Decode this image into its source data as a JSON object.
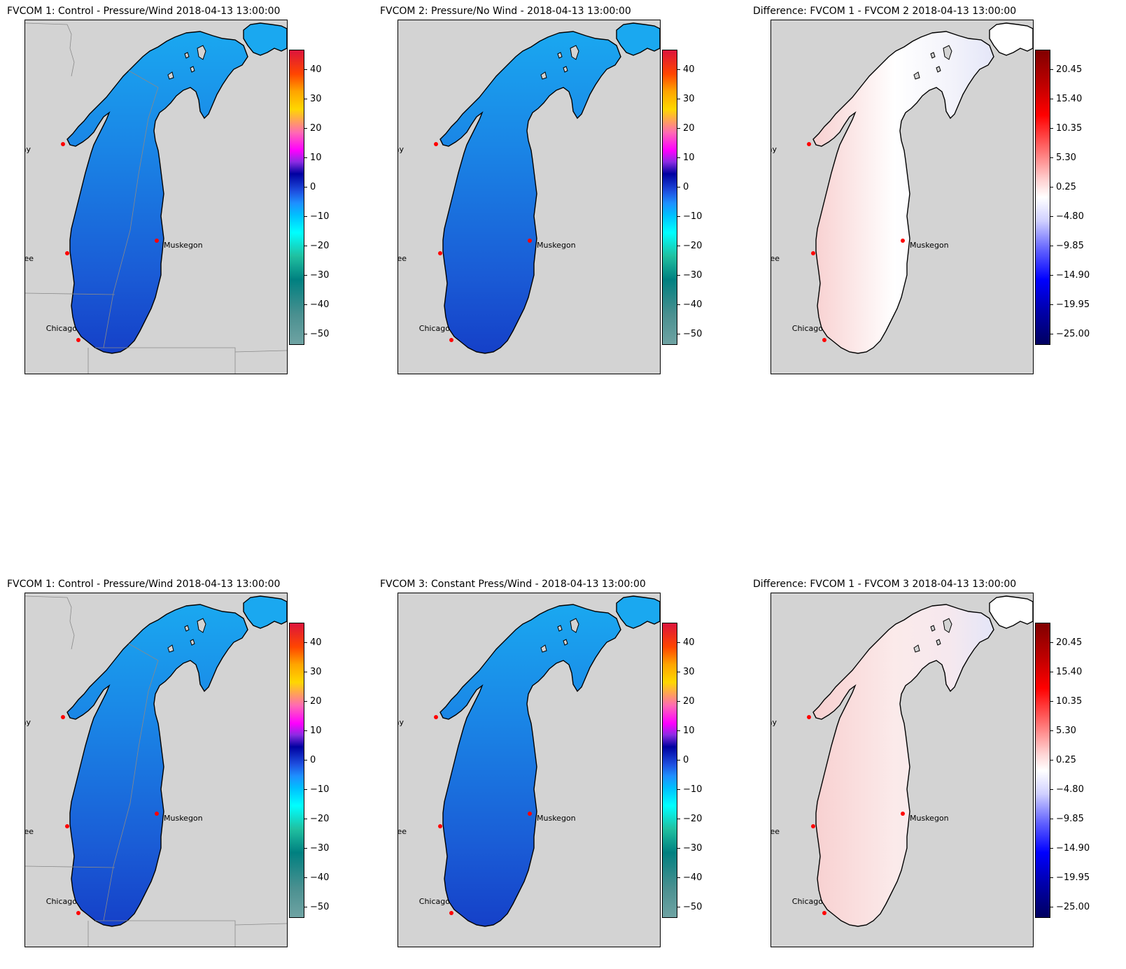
{
  "panels": [
    {
      "title": "FVCOM 1: Control - Pressure/Wind 2018-04-13 13:00:00",
      "type": "field",
      "fill": "#1f7ce6",
      "borders": true
    },
    {
      "title": "FVCOM 2: Pressure/No Wind - 2018-04-13 13:00:00",
      "type": "field",
      "fill": "#1f7ce6",
      "borders": false
    },
    {
      "title": "Difference: FVCOM 1 - FVCOM 2 2018-04-13 13:00:00",
      "type": "diff",
      "fill": "#fbecec",
      "borders": false
    },
    {
      "title": "FVCOM 1: Control - Pressure/Wind 2018-04-13 13:00:00",
      "type": "field",
      "fill": "#1f7ce6",
      "borders": true
    },
    {
      "title": "FVCOM 3: Constant Press/Wind - 2018-04-13 13:00:00",
      "type": "field",
      "fill": "#1f7ce6",
      "borders": false
    },
    {
      "title": "Difference: FVCOM 1 - FVCOM 3 2018-04-13 13:00:00",
      "type": "diff",
      "fill": "#fbe6e6",
      "borders": false
    }
  ],
  "cities": [
    "Green Bay",
    "Milwaukee",
    "Muskegon",
    "Chicago"
  ],
  "colorbar_field_ticks": [
    "40",
    "30",
    "20",
    "10",
    "0",
    "−10",
    "−20",
    "−30",
    "−40",
    "−50"
  ],
  "colorbar_diff_ticks": [
    "20.45",
    "15.40",
    "10.35",
    "5.30",
    "0.25",
    "−4.80",
    "−9.85",
    "−14.90",
    "−19.95",
    "−25.00"
  ],
  "colors": {
    "land": "#d3d3d3",
    "city_marker": "#ff0000",
    "lake_field_north": "#1aa8f0",
    "lake_field_south": "#1540c8",
    "diff_positive": "#f8d0d0",
    "diff_negative": "#e4e6f8"
  }
}
